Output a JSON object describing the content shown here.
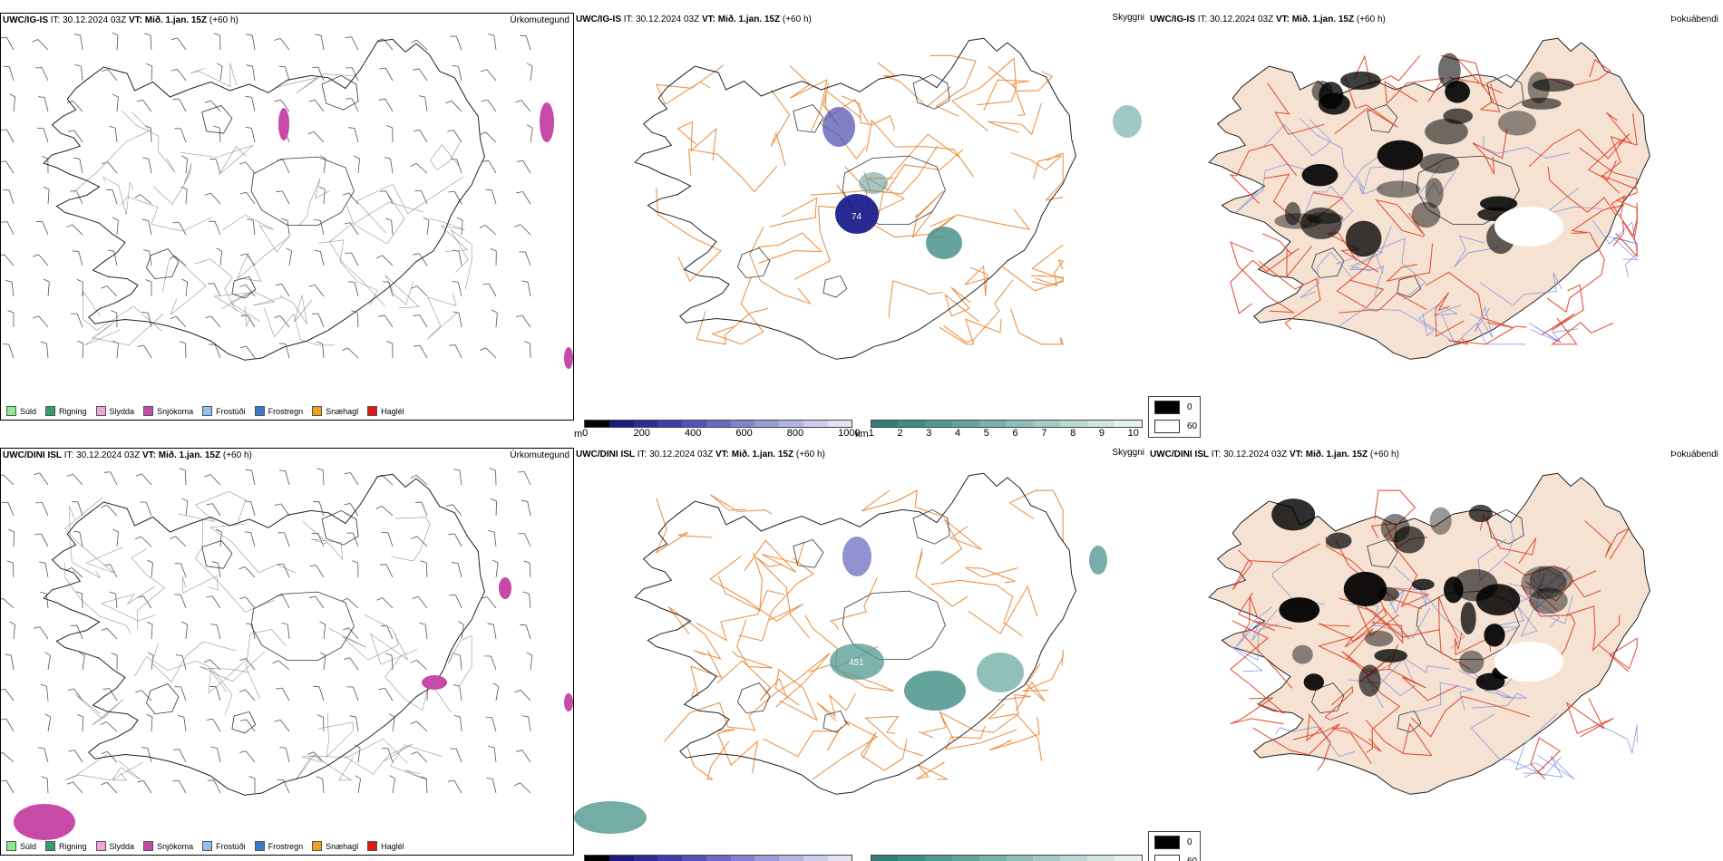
{
  "colors": {
    "land_beige": "#f5e2d2",
    "road_orange": "#e8893a",
    "road_red": "#e0452a",
    "river_blue": "#7d8fe0",
    "outline": "#222222"
  },
  "rows": [
    {
      "model": "UWC/IG-IS",
      "it_label": "IT:",
      "it_value": "30.12.2024 03Z",
      "vt_label": "VT:",
      "vt_value": "Mið. 1.jan. 15Z",
      "lead": "(+60 h)",
      "panels": {
        "precip_type": {
          "title": "Úrkomutegund"
        },
        "visibility": {
          "title": "Skyggni",
          "peak_label": "74"
        },
        "fog": {
          "title": "Þokuábendi"
        }
      }
    },
    {
      "model": "UWC/DINI ISL",
      "it_label": "IT:",
      "it_value": "30.12.2024 03Z",
      "vt_label": "VT:",
      "vt_value": "Mið. 1.jan. 15Z",
      "lead": "(+60 h)",
      "panels": {
        "precip_type": {
          "title": "Úrkomutegund"
        },
        "visibility": {
          "title": "Skyggni",
          "peak_label": "451"
        },
        "fog": {
          "title": "Þokuábendi"
        }
      }
    }
  ],
  "precip_legend": [
    {
      "label": "Súld",
      "color": "#8ee88e"
    },
    {
      "label": "Rigning",
      "color": "#2e9e6a"
    },
    {
      "label": "Slydda",
      "color": "#f2a6d8"
    },
    {
      "label": "Snjókoma",
      "color": "#c84aa8"
    },
    {
      "label": "Frostúði",
      "color": "#8ec0f0"
    },
    {
      "label": "Frostregn",
      "color": "#3a7ac8"
    },
    {
      "label": "Snæhagl",
      "color": "#f0a020"
    },
    {
      "label": "Haglél",
      "color": "#e01818"
    }
  ],
  "height_colorbar": {
    "unit": "m",
    "ticks": [
      "0",
      "200",
      "400",
      "600",
      "800",
      "1000"
    ],
    "colors": [
      "#000000",
      "#1a1a7a",
      "#2c2c96",
      "#3d3dab",
      "#5252b8",
      "#6a6ac4",
      "#8282cf",
      "#9b9bd9",
      "#b4b4e3",
      "#ccccec",
      "#e3e3f5"
    ]
  },
  "visibility_colorbar": {
    "unit": "km",
    "ticks": [
      "1",
      "2",
      "3",
      "4",
      "5",
      "6",
      "7",
      "8",
      "9",
      "10"
    ],
    "colors": [
      "#2f7f77",
      "#3f8c84",
      "#509990",
      "#63a59d",
      "#78b2aa",
      "#8dbfb8",
      "#a3ccc6",
      "#b9d9d4",
      "#cfe6e2",
      "#e6f2f0"
    ]
  },
  "fog_legend": [
    {
      "label": "0",
      "color": "#000000"
    },
    {
      "label": "60",
      "color": "#ffffff"
    }
  ]
}
